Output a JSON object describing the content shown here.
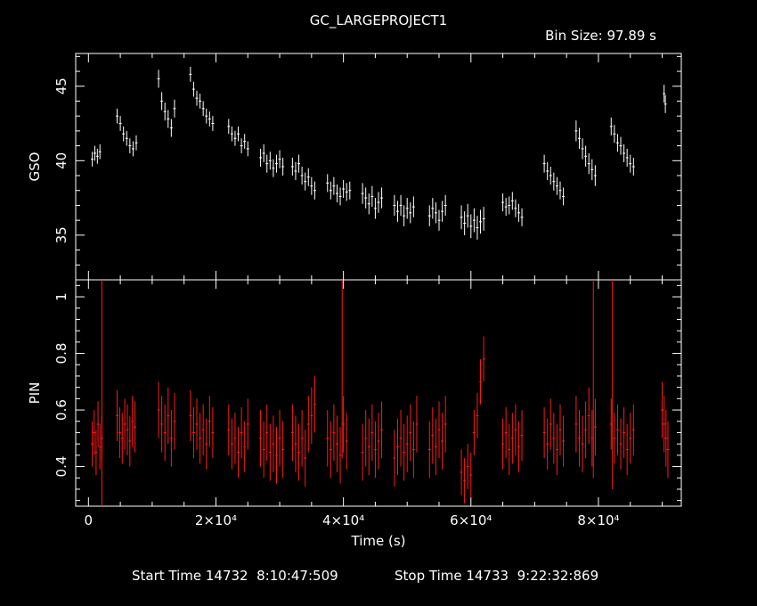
{
  "header": {
    "title": "GC_LARGEPROJECT1",
    "bin_size": "Bin Size: 97.89 s"
  },
  "footer": {
    "start_time": "Start Time 14732  8:10:47:509",
    "stop_time": "Stop Time 14733  9:22:32:869"
  },
  "colors": {
    "gso": "#ffffff",
    "pin": "#ff1a1a",
    "axes": "#ffffff",
    "background": "#000000"
  },
  "chart_data": {
    "type": "line",
    "xlabel": "Time (s)",
    "xlim": [
      -2000,
      93000
    ],
    "xticks": [
      {
        "value": 0,
        "label": "0"
      },
      {
        "value": 20000,
        "label": "2×10⁴"
      },
      {
        "value": 40000,
        "label": "4×10⁴"
      },
      {
        "value": 60000,
        "label": "6×10⁴"
      },
      {
        "value": 80000,
        "label": "8×10⁴"
      }
    ],
    "panels": [
      {
        "name": "gso",
        "ylabel": "GSO",
        "ylim": [
          32.0,
          47.2
        ],
        "yticks": [
          35,
          40,
          45
        ],
        "segments": [
          {
            "x": [
              600,
              1000,
              1400,
              1800
            ],
            "y": [
              40.1,
              40.5,
              40.3,
              40.6
            ],
            "err": 0.5
          },
          {
            "x": [
              4500,
              5000,
              5500,
              6000,
              6500,
              7000,
              7500
            ],
            "y": [
              43.0,
              42.5,
              41.8,
              41.5,
              41.0,
              40.8,
              41.2
            ],
            "err": 0.5
          },
          {
            "x": [
              11000,
              11500,
              12000,
              12500,
              13000,
              13500
            ],
            "y": [
              45.5,
              44.0,
              43.3,
              42.8,
              42.2,
              43.5
            ],
            "err": 0.6
          },
          {
            "x": [
              16000,
              16500,
              17000,
              17500,
              18000,
              18500,
              19000,
              19500
            ],
            "y": [
              45.8,
              44.8,
              44.2,
              44.0,
              43.5,
              43.0,
              42.8,
              42.5
            ],
            "err": 0.5
          },
          {
            "x": [
              22000,
              22500,
              23000,
              23500,
              24000,
              24500,
              25000
            ],
            "y": [
              42.3,
              41.8,
              41.5,
              41.8,
              41.0,
              41.3,
              40.8
            ],
            "err": 0.5
          },
          {
            "x": [
              27000,
              27500,
              28000,
              28500,
              29000,
              29500,
              30000,
              30500
            ],
            "y": [
              40.2,
              40.5,
              39.8,
              40.0,
              39.5,
              39.8,
              40.1,
              39.6
            ],
            "err": 0.6
          },
          {
            "x": [
              32000,
              32500,
              33000,
              33500,
              34000,
              34500,
              35000,
              35500
            ],
            "y": [
              39.6,
              39.3,
              39.8,
              39.0,
              38.6,
              38.9,
              38.3,
              38.0
            ],
            "err": 0.6
          },
          {
            "x": [
              37500,
              38000,
              38500,
              39000,
              39500,
              40000,
              40500,
              41000
            ],
            "y": [
              38.5,
              38.0,
              38.3,
              37.8,
              37.6,
              38.1,
              37.9,
              38.0
            ],
            "err": 0.6
          },
          {
            "x": [
              43000,
              43500,
              44000,
              44500,
              45000,
              45500,
              46000
            ],
            "y": [
              37.8,
              37.5,
              37.1,
              37.6,
              36.8,
              37.2,
              37.5
            ],
            "err": 0.7
          },
          {
            "x": [
              48000,
              48500,
              49000,
              49500,
              50000,
              50500,
              51000
            ],
            "y": [
              37.0,
              36.6,
              37.0,
              36.3,
              36.8,
              36.5,
              36.9
            ],
            "err": 0.7
          },
          {
            "x": [
              53500,
              54000,
              54500,
              55000,
              55500,
              56000
            ],
            "y": [
              36.3,
              36.8,
              36.5,
              36.0,
              36.6,
              37.0
            ],
            "err": 0.7
          },
          {
            "x": [
              58500,
              59000,
              59500,
              60000,
              60500,
              61000,
              61500,
              62000
            ],
            "y": [
              36.2,
              35.8,
              36.3,
              35.6,
              36.0,
              35.5,
              35.9,
              36.1
            ],
            "err": 0.8
          },
          {
            "x": [
              65000,
              65500,
              66000,
              66500,
              67000,
              67500,
              68000
            ],
            "y": [
              37.2,
              36.9,
              37.0,
              37.3,
              36.8,
              36.5,
              36.2
            ],
            "err": 0.6
          },
          {
            "x": [
              71500,
              72000,
              72500,
              73000,
              73500,
              74000,
              74500
            ],
            "y": [
              39.8,
              39.3,
              39.0,
              38.6,
              38.3,
              38.0,
              37.6
            ],
            "err": 0.6
          },
          {
            "x": [
              76500,
              77000,
              77500,
              78000,
              78500,
              79000,
              79500
            ],
            "y": [
              42.0,
              41.5,
              40.8,
              40.3,
              39.8,
              39.4,
              39.0
            ],
            "err": 0.7
          },
          {
            "x": [
              82000,
              82500,
              83000,
              83500,
              84000,
              84500,
              85000,
              85500
            ],
            "y": [
              42.3,
              41.8,
              41.2,
              41.0,
              40.5,
              40.2,
              39.8,
              39.6
            ],
            "err": 0.6
          },
          {
            "x": [
              90300,
              90500
            ],
            "y": [
              44.5,
              43.8
            ],
            "err": 0.6
          }
        ]
      },
      {
        "name": "pin",
        "ylabel": "PIN",
        "ylim": [
          0.26,
          1.06
        ],
        "yticks": [
          0.4,
          0.6,
          0.8,
          1
        ],
        "segments": [
          {
            "x": [
              600,
              900,
              1200,
              1500,
              1800,
              2100
            ],
            "y": [
              0.48,
              0.52,
              0.45,
              0.55,
              0.47,
              0.5
            ],
            "err": 0.08
          },
          {
            "x": [
              4500,
              4900,
              5300,
              5700,
              6100,
              6500,
              6900,
              7300
            ],
            "y": [
              0.58,
              0.52,
              0.5,
              0.55,
              0.53,
              0.49,
              0.56,
              0.54
            ],
            "err": 0.09
          },
          {
            "x": [
              11000,
              11500,
              12000,
              12500,
              13000,
              13500
            ],
            "y": [
              0.6,
              0.55,
              0.52,
              0.58,
              0.5,
              0.56
            ],
            "err": 0.1
          },
          {
            "x": [
              16000,
              16500,
              17000,
              17500,
              18000,
              18500,
              19000,
              19500
            ],
            "y": [
              0.58,
              0.52,
              0.55,
              0.5,
              0.53,
              0.48,
              0.56,
              0.52
            ],
            "err": 0.09
          },
          {
            "x": [
              22000,
              22500,
              23000,
              23500,
              24000,
              24500,
              25000
            ],
            "y": [
              0.53,
              0.48,
              0.5,
              0.45,
              0.52,
              0.47,
              0.55
            ],
            "err": 0.09
          },
          {
            "x": [
              27000,
              27500,
              28000,
              28500,
              29000,
              29500,
              30000,
              30500
            ],
            "y": [
              0.5,
              0.46,
              0.52,
              0.45,
              0.48,
              0.44,
              0.5,
              0.46
            ],
            "err": 0.1
          },
          {
            "x": [
              32000,
              32500,
              33000,
              33500,
              34000,
              34500,
              35000,
              35500
            ],
            "y": [
              0.52,
              0.48,
              0.45,
              0.5,
              0.43,
              0.55,
              0.58,
              0.62
            ],
            "err": 0.1
          },
          {
            "x": [
              37500,
              38000,
              38500,
              39000,
              39500,
              40000,
              40500
            ],
            "y": [
              0.5,
              0.46,
              0.52,
              0.48,
              0.44,
              0.55,
              0.49
            ],
            "err": 0.1
          },
          {
            "x": [
              43000,
              43500,
              44000,
              44500,
              45000,
              45500,
              46000
            ],
            "y": [
              0.45,
              0.5,
              0.47,
              0.52,
              0.46,
              0.49,
              0.53
            ],
            "err": 0.1
          },
          {
            "x": [
              48000,
              48500,
              49000,
              49500,
              50000,
              50500,
              51000,
              51500
            ],
            "y": [
              0.43,
              0.47,
              0.5,
              0.45,
              0.48,
              0.52,
              0.46,
              0.55
            ],
            "err": 0.1
          },
          {
            "x": [
              53500,
              54000,
              54500,
              55000,
              55500,
              56000
            ],
            "y": [
              0.46,
              0.51,
              0.47,
              0.53,
              0.49,
              0.55
            ],
            "err": 0.1
          },
          {
            "x": [
              58500,
              59000,
              59500,
              60000,
              60500,
              61000,
              61500,
              62000
            ],
            "y": [
              0.38,
              0.35,
              0.4,
              0.37,
              0.52,
              0.58,
              0.7,
              0.78
            ],
            "err": 0.08
          },
          {
            "x": [
              65000,
              65500,
              66000,
              66500,
              67000,
              67500,
              68000
            ],
            "y": [
              0.48,
              0.52,
              0.46,
              0.5,
              0.53,
              0.47,
              0.51
            ],
            "err": 0.09
          },
          {
            "x": [
              71500,
              72000,
              72500,
              73000,
              73500,
              74000,
              74500
            ],
            "y": [
              0.52,
              0.48,
              0.55,
              0.5,
              0.46,
              0.53,
              0.49
            ],
            "err": 0.09
          },
          {
            "x": [
              76500,
              77000,
              77500,
              78000,
              78500,
              79000,
              79500
            ],
            "y": [
              0.55,
              0.5,
              0.48,
              0.53,
              0.58,
              0.5,
              0.54
            ],
            "err": 0.1
          },
          {
            "x": [
              82000,
              82500,
              83000,
              83500,
              84000,
              84500,
              85000,
              85500
            ],
            "y": [
              0.55,
              0.5,
              0.53,
              0.48,
              0.52,
              0.46,
              0.5,
              0.53
            ],
            "err": 0.09
          },
          {
            "x": [
              90000,
              90300,
              90600,
              90900
            ],
            "y": [
              0.6,
              0.55,
              0.5,
              0.46
            ],
            "err": 0.1
          }
        ],
        "spikes": [
          {
            "x": 2100,
            "y": 0.66,
            "err": 0.42
          },
          {
            "x": 39800,
            "y": 0.75,
            "err": 0.32
          },
          {
            "x": 79200,
            "y": 0.72,
            "err": 0.36
          },
          {
            "x": 82200,
            "y": 0.7,
            "err": 0.38
          }
        ]
      }
    ]
  }
}
